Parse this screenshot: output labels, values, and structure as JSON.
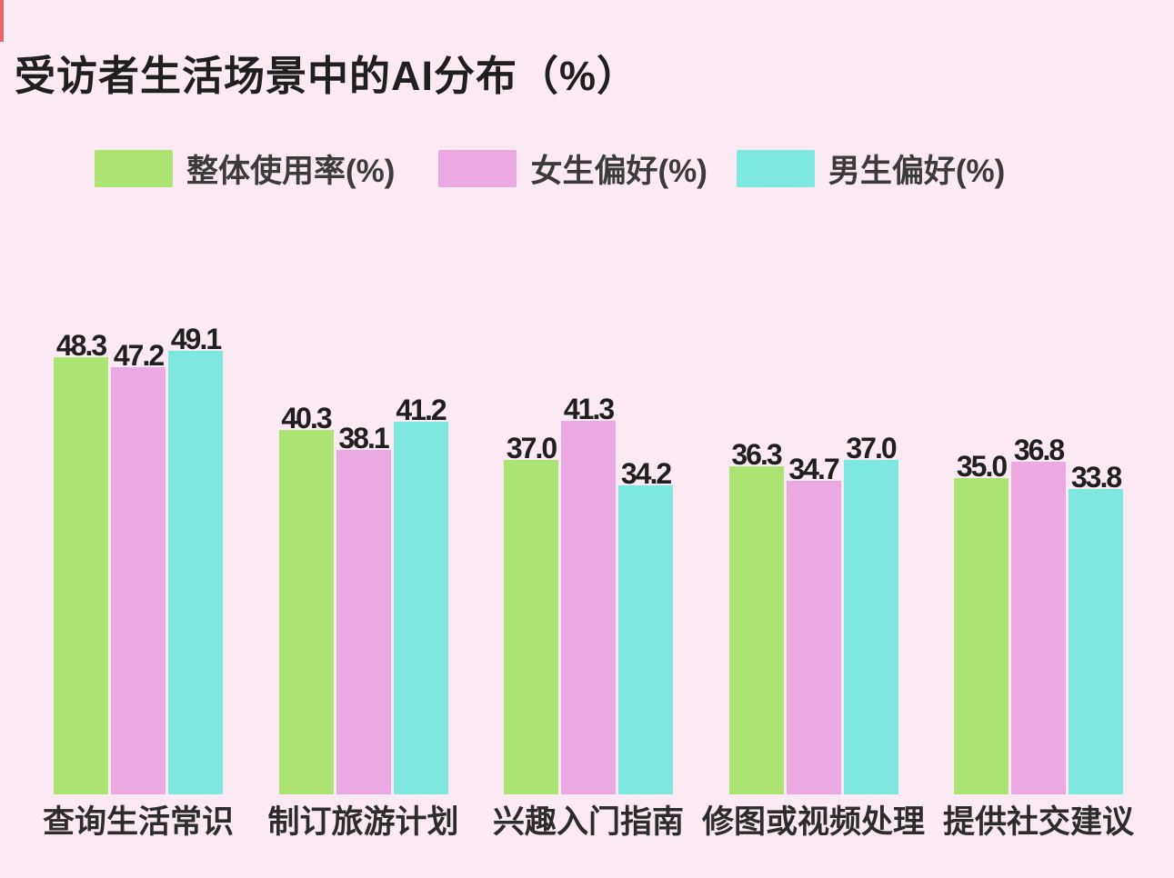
{
  "title": "受访者生活场景中的AI分布（%）",
  "colors": {
    "background": "#fbe9f3",
    "text": "#1f1f1f",
    "series_green": "#abe473",
    "series_pink": "#eca9e1",
    "series_cyan": "#7ee7de"
  },
  "legend": [
    {
      "label": "整体使用率(%)",
      "color": "#abe473"
    },
    {
      "label": "女生偏好(%)",
      "color": "#eca9e1"
    },
    {
      "label": "男生偏好(%)",
      "color": "#7ee7de"
    }
  ],
  "chart_data": {
    "type": "bar",
    "title": "受访者生活场景中的AI分布（%）",
    "categories": [
      "查询生活常识",
      "制订旅游计划",
      "兴趣入门指南",
      "修图或视频处理",
      "提供社交建议"
    ],
    "series": [
      {
        "name": "整体使用率(%)",
        "color": "#abe473",
        "values": [
          48.3,
          40.3,
          37.0,
          36.3,
          35.0
        ]
      },
      {
        "name": "女生偏好(%)",
        "color": "#eca9e1",
        "values": [
          47.2,
          38.1,
          41.3,
          34.7,
          36.8
        ]
      },
      {
        "name": "男生偏好(%)",
        "color": "#7ee7de",
        "values": [
          49.1,
          41.2,
          34.2,
          37.0,
          33.8
        ]
      }
    ],
    "value_labels": true,
    "ylim": [
      0,
      50
    ],
    "grid": false,
    "axes_visible": false,
    "legend_position": "top"
  }
}
